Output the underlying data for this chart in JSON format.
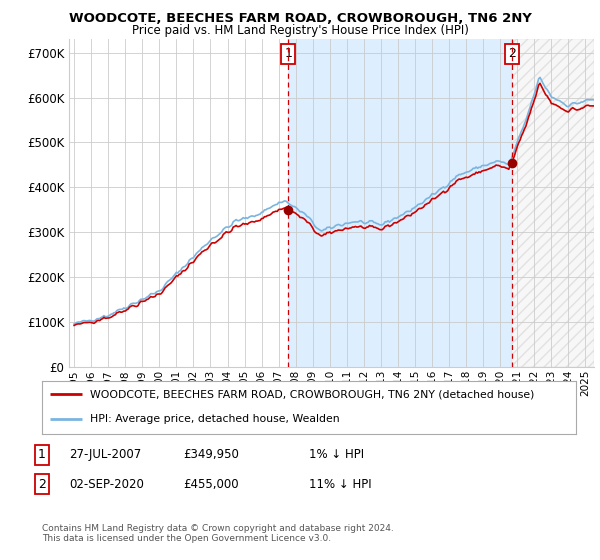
{
  "title": "WOODCOTE, BEECHES FARM ROAD, CROWBOROUGH, TN6 2NY",
  "subtitle": "Price paid vs. HM Land Registry's House Price Index (HPI)",
  "ylabel_ticks": [
    "£0",
    "£100K",
    "£200K",
    "£300K",
    "£400K",
    "£500K",
    "£600K",
    "£700K"
  ],
  "ytick_vals": [
    0,
    100000,
    200000,
    300000,
    400000,
    500000,
    600000,
    700000
  ],
  "ylim": [
    0,
    730000
  ],
  "xlim_start": 1994.7,
  "xlim_end": 2025.5,
  "legend_line1": "WOODCOTE, BEECHES FARM ROAD, CROWBOROUGH, TN6 2NY (detached house)",
  "legend_line2": "HPI: Average price, detached house, Wealden",
  "sale1_label": "1",
  "sale1_date": "27-JUL-2007",
  "sale1_price": "£349,950",
  "sale1_hpi": "1% ↓ HPI",
  "sale1_x": 2007.57,
  "sale1_y": 349950,
  "sale2_label": "2",
  "sale2_date": "02-SEP-2020",
  "sale2_price": "£455,000",
  "sale2_hpi": "11% ↓ HPI",
  "sale2_x": 2020.67,
  "sale2_y": 455000,
  "copyright_text": "Contains HM Land Registry data © Crown copyright and database right 2024.\nThis data is licensed under the Open Government Licence v3.0.",
  "hpi_color": "#7ab4e0",
  "price_color": "#cc0000",
  "marker_color": "#990000",
  "dashed_line_color": "#cc0000",
  "fill_color": "#ddeeff",
  "background_color": "#ffffff",
  "grid_color": "#cccccc",
  "hatch_color": "#cccccc"
}
